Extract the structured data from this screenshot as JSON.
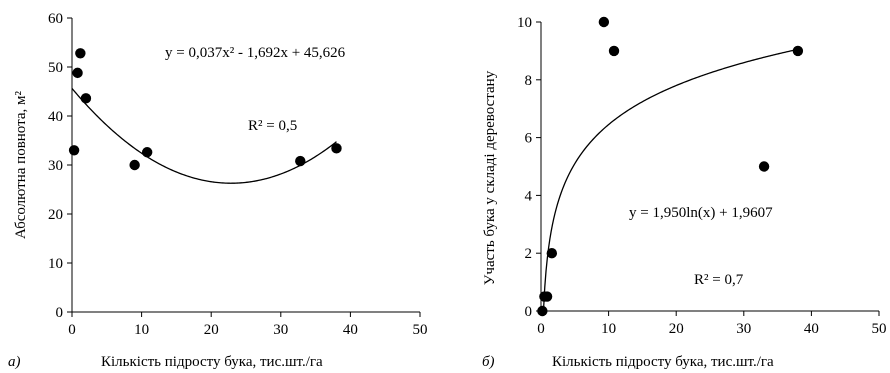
{
  "chart_data": [
    {
      "type": "scatter",
      "panel_label": "а)",
      "xlabel": "Кількість підросту бука, тис.шт./га",
      "ylabel": "Абсолютна повнота, м²",
      "xlim": [
        0,
        50
      ],
      "ylim": [
        0,
        60
      ],
      "xticks": [
        "0",
        "10",
        "20",
        "30",
        "40",
        "50"
      ],
      "yticks": [
        "0",
        "10",
        "20",
        "30",
        "40",
        "50",
        "60"
      ],
      "grid": false,
      "equation": "y = 0,037x² - 1,692x + 45,626",
      "r2": "R² = 0,5",
      "series": [
        {
          "x": [
            0.3,
            0.8,
            1.2,
            2.0,
            9.0,
            10.8,
            32.8,
            38.0
          ],
          "y": [
            33.0,
            48.8,
            52.8,
            43.6,
            30.0,
            32.6,
            30.8,
            33.4
          ]
        }
      ],
      "trendline": {
        "type": "polynomial",
        "coefficients": [
          0.037,
          -1.692,
          45.626
        ],
        "x_range": [
          0,
          38
        ]
      }
    },
    {
      "type": "scatter",
      "panel_label": "б)",
      "xlabel": "Кількість підросту бука, тис.шт./га",
      "ylabel": "Участь бука у складі деревостану",
      "xlim": [
        0,
        50
      ],
      "ylim": [
        0,
        10
      ],
      "xticks": [
        "0",
        "10",
        "20",
        "30",
        "40",
        "50"
      ],
      "yticks": [
        "0",
        "2",
        "4",
        "6",
        "8",
        "10"
      ],
      "grid": false,
      "equation": "y = 1,950ln(x) + 1,9607",
      "r2": "R² = 0,7",
      "series": [
        {
          "x": [
            0.2,
            0.5,
            0.9,
            1.6,
            9.3,
            10.8,
            33.0,
            38.0
          ],
          "y": [
            0,
            0.5,
            0.5,
            2.0,
            10.0,
            9.0,
            5.0,
            9.0
          ]
        }
      ],
      "trendline": {
        "type": "logarithmic",
        "coefficients": [
          1.95,
          1.9607
        ],
        "x_range": [
          0.37,
          38
        ]
      }
    }
  ]
}
